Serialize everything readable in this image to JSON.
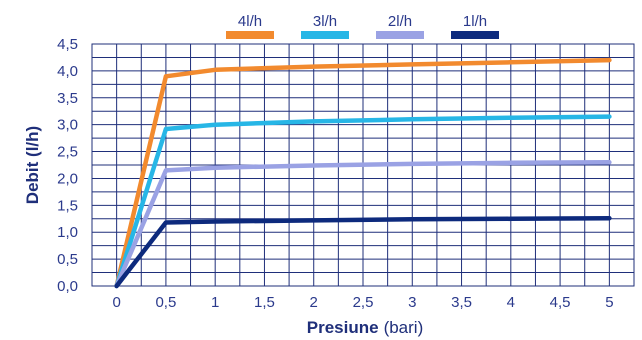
{
  "chart_data": {
    "type": "line",
    "xlabel_bold": "Presiune",
    "xlabel_rest": "(bari)",
    "ylabel": "Debit (l/h)",
    "xlim": [
      -0.25,
      5.25
    ],
    "ylim": [
      0,
      4.5
    ],
    "x_ticks": [
      "0",
      "0,5",
      "1",
      "1,5",
      "2",
      "2,5",
      "3",
      "3,5",
      "4",
      "4,5",
      "5"
    ],
    "x_tick_values": [
      0,
      0.5,
      1,
      1.5,
      2,
      2.5,
      3,
      3.5,
      4,
      4.5,
      5
    ],
    "y_ticks": [
      "0,0",
      "0,5",
      "1,0",
      "1,5",
      "2,0",
      "2,5",
      "3,0",
      "3,5",
      "4,0",
      "4,5"
    ],
    "y_tick_values": [
      0,
      0.5,
      1,
      1.5,
      2,
      2.5,
      3,
      3.5,
      4,
      4.5
    ],
    "grid": true,
    "legend_position": "top",
    "series": [
      {
        "name": "4l/h",
        "color": "#f28a2e",
        "x": [
          0,
          0.5,
          1,
          2,
          3,
          4,
          5
        ],
        "y": [
          0,
          3.9,
          4.02,
          4.08,
          4.12,
          4.16,
          4.2
        ]
      },
      {
        "name": "3l/h",
        "color": "#27b6e6",
        "x": [
          0,
          0.5,
          1,
          2,
          3,
          4,
          5
        ],
        "y": [
          0,
          2.92,
          3.0,
          3.06,
          3.1,
          3.13,
          3.15
        ]
      },
      {
        "name": "2l/h",
        "color": "#9aa2e4",
        "x": [
          0,
          0.5,
          1,
          2,
          3,
          4,
          5
        ],
        "y": [
          0,
          2.15,
          2.2,
          2.24,
          2.27,
          2.29,
          2.3
        ]
      },
      {
        "name": "1l/h",
        "color": "#0d2a7d",
        "x": [
          0,
          0.5,
          1,
          2,
          3,
          4,
          5
        ],
        "y": [
          0,
          1.18,
          1.2,
          1.22,
          1.24,
          1.25,
          1.26
        ]
      }
    ]
  }
}
